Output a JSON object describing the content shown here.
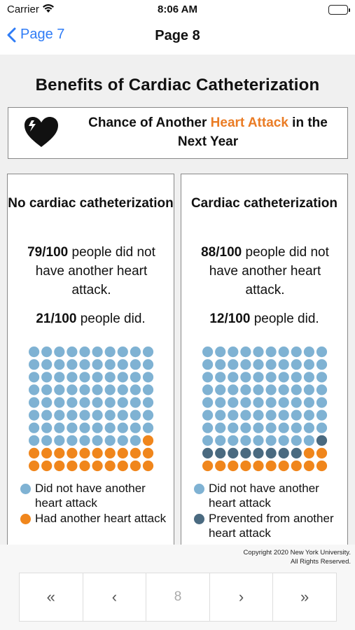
{
  "status": {
    "carrier": "Carrier",
    "time": "8:06 AM"
  },
  "nav": {
    "back_label": "Page 7",
    "title": "Page 8"
  },
  "page": {
    "heading": "Benefits of Cardiac Catheterization",
    "banner_prefix": "Chance of Another ",
    "banner_accent": "Heart Attack",
    "banner_suffix": " in the Next Year"
  },
  "colors": {
    "light_blue": "#7fb2d3",
    "orange": "#f0861c",
    "dark_blue": "#4a6a80",
    "accent": "#ea7c25"
  },
  "cards": [
    {
      "title": "No cardiac catheterization",
      "stat_strong": "79/100",
      "stat_rest": " people did not have another heart attack.",
      "stat2_strong": "21/100",
      "stat2_rest": " people did.",
      "counts": {
        "light": 79,
        "dark": 0,
        "orange": 21
      },
      "legend": [
        {
          "label": "Did not have another heart attack",
          "color": "#7fb2d3"
        },
        {
          "label": "Had another heart attack",
          "color": "#f0861c"
        }
      ]
    },
    {
      "title": "Cardiac catheterization",
      "stat_strong": "88/100",
      "stat_rest": " people did not have another heart attack.",
      "stat2_strong": "12/100",
      "stat2_rest": " people did.",
      "counts": {
        "light": 79,
        "dark": 9,
        "orange": 12
      },
      "legend": [
        {
          "label": "Did not have another heart attack",
          "color": "#7fb2d3"
        },
        {
          "label": "Prevented from another heart attack",
          "color": "#4a6a80"
        }
      ]
    }
  ],
  "footer": {
    "copyright_line1": "Copyright 2020 New York University.",
    "copyright_line2": "All Rights Reserved."
  },
  "pager": {
    "first": "«",
    "prev": "‹",
    "current": "8",
    "next": "›",
    "last": "»"
  }
}
